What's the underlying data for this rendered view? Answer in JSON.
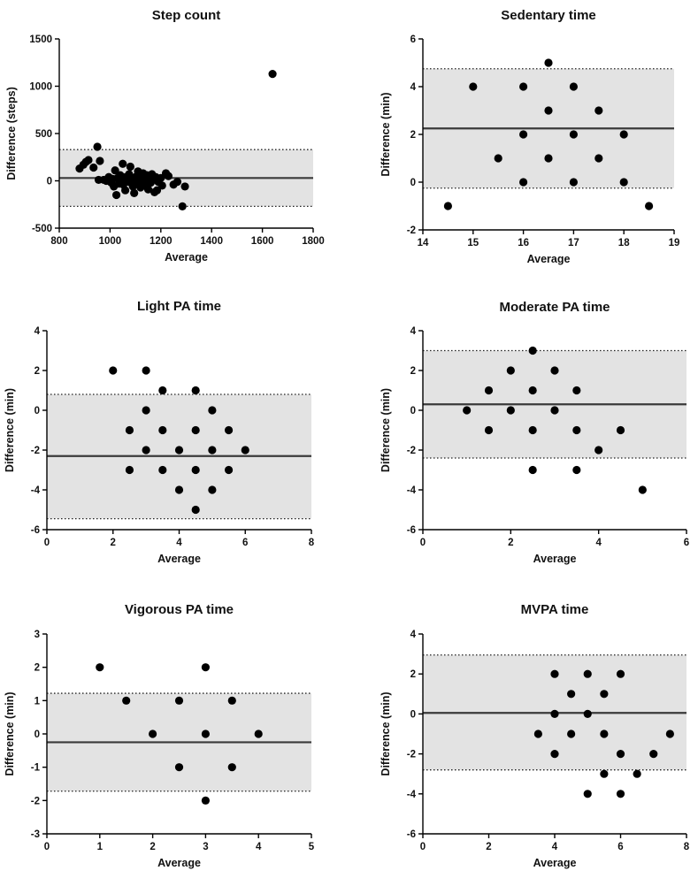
{
  "colors": {
    "band": "#e3e3e3",
    "line": "#3a3a3a",
    "point": "#000000",
    "axis": "#000000"
  },
  "chart_data": [
    {
      "id": "step",
      "type": "scatter",
      "title": "Step count",
      "xlabel": "Average",
      "ylabel": "Difference (steps)",
      "xlim": [
        800,
        1800
      ],
      "ylim": [
        -500,
        1500
      ],
      "xticks": [
        800,
        1000,
        1200,
        1400,
        1600,
        1800
      ],
      "yticks": [
        -500,
        0,
        500,
        1000,
        1500
      ],
      "bias": 30,
      "loa_upper": 330,
      "loa_lower": -270,
      "points": [
        [
          880,
          130
        ],
        [
          895,
          170
        ],
        [
          905,
          200
        ],
        [
          915,
          220
        ],
        [
          935,
          140
        ],
        [
          950,
          360
        ],
        [
          955,
          10
        ],
        [
          960,
          210
        ],
        [
          975,
          10
        ],
        [
          985,
          0
        ],
        [
          995,
          40
        ],
        [
          1005,
          -20
        ],
        [
          1010,
          20
        ],
        [
          1015,
          -60
        ],
        [
          1020,
          110
        ],
        [
          1025,
          -150
        ],
        [
          1030,
          30
        ],
        [
          1035,
          -30
        ],
        [
          1040,
          60
        ],
        [
          1045,
          0
        ],
        [
          1050,
          180
        ],
        [
          1052,
          -40
        ],
        [
          1060,
          -100
        ],
        [
          1062,
          40
        ],
        [
          1065,
          -10
        ],
        [
          1070,
          20
        ],
        [
          1075,
          70
        ],
        [
          1080,
          150
        ],
        [
          1082,
          -20
        ],
        [
          1085,
          0
        ],
        [
          1090,
          -60
        ],
        [
          1095,
          -130
        ],
        [
          1100,
          40
        ],
        [
          1102,
          20
        ],
        [
          1105,
          -30
        ],
        [
          1110,
          100
        ],
        [
          1115,
          50
        ],
        [
          1118,
          -10
        ],
        [
          1120,
          -70
        ],
        [
          1125,
          20
        ],
        [
          1130,
          80
        ],
        [
          1135,
          -40
        ],
        [
          1140,
          0
        ],
        [
          1145,
          60
        ],
        [
          1150,
          -90
        ],
        [
          1155,
          30
        ],
        [
          1160,
          -20
        ],
        [
          1165,
          70
        ],
        [
          1170,
          10
        ],
        [
          1175,
          -120
        ],
        [
          1180,
          40
        ],
        [
          1185,
          -100
        ],
        [
          1190,
          -10
        ],
        [
          1200,
          30
        ],
        [
          1205,
          -50
        ],
        [
          1220,
          80
        ],
        [
          1230,
          50
        ],
        [
          1250,
          -40
        ],
        [
          1265,
          -10
        ],
        [
          1285,
          -270
        ],
        [
          1295,
          -60
        ],
        [
          1640,
          1130
        ]
      ]
    },
    {
      "id": "sedentary",
      "type": "scatter",
      "title": "Sedentary time",
      "xlabel": "Average",
      "ylabel": "Difference (min)",
      "xlim": [
        14,
        19
      ],
      "ylim": [
        -2,
        6
      ],
      "xticks": [
        14,
        15,
        16,
        17,
        18,
        19
      ],
      "yticks": [
        -2,
        0,
        2,
        4,
        6
      ],
      "bias": 2.25,
      "loa_upper": 4.75,
      "loa_lower": -0.25,
      "points": [
        [
          14.5,
          -1
        ],
        [
          15,
          4
        ],
        [
          15.5,
          1
        ],
        [
          16,
          4
        ],
        [
          16,
          2
        ],
        [
          16,
          0
        ],
        [
          16.5,
          5
        ],
        [
          16.5,
          3
        ],
        [
          16.5,
          1
        ],
        [
          17,
          4
        ],
        [
          17,
          2
        ],
        [
          17,
          0
        ],
        [
          17.5,
          3
        ],
        [
          17.5,
          1
        ],
        [
          18,
          2
        ],
        [
          18,
          0
        ],
        [
          18.5,
          -1
        ]
      ]
    },
    {
      "id": "light",
      "type": "scatter",
      "title": "Light PA time",
      "xlabel": "Average",
      "ylabel": "Difference (min)",
      "xlim": [
        0,
        8
      ],
      "ylim": [
        -6,
        4
      ],
      "xticks": [
        0,
        2,
        4,
        6,
        8
      ],
      "yticks": [
        -6,
        -4,
        -2,
        0,
        2,
        4
      ],
      "bias": -2.3,
      "loa_upper": 0.8,
      "loa_lower": -5.45,
      "points": [
        [
          2,
          2
        ],
        [
          2.5,
          -1
        ],
        [
          2.5,
          -3
        ],
        [
          3,
          2
        ],
        [
          3,
          0
        ],
        [
          3,
          -2
        ],
        [
          3.5,
          1
        ],
        [
          3.5,
          -1
        ],
        [
          3.5,
          -3
        ],
        [
          4,
          -2
        ],
        [
          4,
          -4
        ],
        [
          4.5,
          1
        ],
        [
          4.5,
          -1
        ],
        [
          4.5,
          -3
        ],
        [
          4.5,
          -5
        ],
        [
          5,
          0
        ],
        [
          5,
          -2
        ],
        [
          5,
          -4
        ],
        [
          5.5,
          -1
        ],
        [
          5.5,
          -3
        ],
        [
          6,
          -2
        ]
      ]
    },
    {
      "id": "moderate",
      "type": "scatter",
      "title": "Moderate PA time",
      "xlabel": "Average",
      "ylabel": "Difference (min)",
      "xlim": [
        0,
        6
      ],
      "ylim": [
        -6,
        4
      ],
      "xticks": [
        0,
        2,
        4,
        6
      ],
      "yticks": [
        -6,
        -4,
        -2,
        0,
        2,
        4
      ],
      "bias": 0.3,
      "loa_upper": 3.0,
      "loa_lower": -2.4,
      "points": [
        [
          1,
          0
        ],
        [
          1.5,
          1
        ],
        [
          1.5,
          -1
        ],
        [
          2,
          2
        ],
        [
          2,
          0
        ],
        [
          2.5,
          3
        ],
        [
          2.5,
          1
        ],
        [
          2.5,
          -1
        ],
        [
          2.5,
          -3
        ],
        [
          3,
          2
        ],
        [
          3,
          0
        ],
        [
          3.5,
          1
        ],
        [
          3.5,
          -1
        ],
        [
          3.5,
          -3
        ],
        [
          4,
          -2
        ],
        [
          4.5,
          -1
        ],
        [
          5,
          -4
        ]
      ]
    },
    {
      "id": "vigorous",
      "type": "scatter",
      "title": "Vigorous PA time",
      "xlabel": "Average",
      "ylabel": "Difference (min)",
      "xlim": [
        0,
        5
      ],
      "ylim": [
        -3,
        3
      ],
      "xticks": [
        0,
        1,
        2,
        3,
        4,
        5
      ],
      "yticks": [
        -3,
        -2,
        -1,
        0,
        1,
        2,
        3
      ],
      "bias": -0.25,
      "loa_upper": 1.22,
      "loa_lower": -1.72,
      "points": [
        [
          1,
          2
        ],
        [
          1.5,
          1
        ],
        [
          2,
          0
        ],
        [
          2.5,
          1
        ],
        [
          2.5,
          -1
        ],
        [
          3,
          2
        ],
        [
          3,
          0
        ],
        [
          3,
          -2
        ],
        [
          3.5,
          1
        ],
        [
          3.5,
          -1
        ],
        [
          4,
          0
        ]
      ]
    },
    {
      "id": "mvpa",
      "type": "scatter",
      "title": "MVPA time",
      "xlabel": "Average",
      "ylabel": "Difference (min)",
      "xlim": [
        0,
        8
      ],
      "ylim": [
        -6,
        4
      ],
      "xticks": [
        0,
        2,
        4,
        6,
        8
      ],
      "yticks": [
        -6,
        -4,
        -2,
        0,
        2,
        4
      ],
      "bias": 0.05,
      "loa_upper": 2.95,
      "loa_lower": -2.8,
      "points": [
        [
          3.5,
          -1
        ],
        [
          4,
          2
        ],
        [
          4,
          0
        ],
        [
          4,
          -2
        ],
        [
          4.5,
          1
        ],
        [
          4.5,
          -1
        ],
        [
          5,
          2
        ],
        [
          5,
          0
        ],
        [
          5,
          -4
        ],
        [
          5.5,
          1
        ],
        [
          5.5,
          -1
        ],
        [
          5.5,
          -3
        ],
        [
          6,
          2
        ],
        [
          6,
          -2
        ],
        [
          6,
          -4
        ],
        [
          6.5,
          -3
        ],
        [
          7,
          -2
        ],
        [
          7.5,
          -1
        ]
      ]
    }
  ]
}
